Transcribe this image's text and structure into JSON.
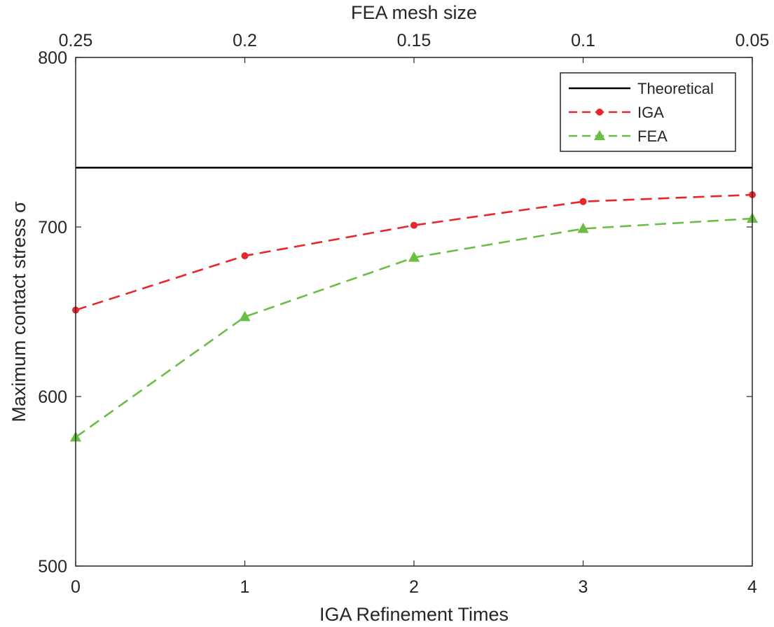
{
  "chart_data": {
    "type": "line",
    "title": "",
    "xlabel": "IGA Refinement Times",
    "ylabel": "Maximum contact stress  σ",
    "top_xlabel": "FEA mesh size",
    "x": [
      0,
      1,
      2,
      3,
      4
    ],
    "xlim": [
      0,
      4
    ],
    "ylim": [
      500,
      800
    ],
    "x_ticks": [
      "0",
      "1",
      "2",
      "3",
      "4"
    ],
    "y_ticks": [
      "500",
      "600",
      "700",
      "800"
    ],
    "top_ticks": [
      "0.25",
      "0.2",
      "0.15",
      "0.1",
      "0.05"
    ],
    "grid": false,
    "legend_position": "top-right",
    "series": [
      {
        "name": "Theoretical",
        "values": [
          735,
          735,
          735,
          735,
          735
        ],
        "color": "#000000",
        "style": "solid",
        "marker": "none"
      },
      {
        "name": "IGA",
        "values": [
          651,
          683,
          701,
          715,
          719
        ],
        "color": "#e8262c",
        "style": "dashed",
        "marker": "circle"
      },
      {
        "name": "FEA",
        "values": [
          576,
          647,
          682,
          699,
          705
        ],
        "color": "#6cbd45",
        "style": "dashed",
        "marker": "triangle"
      }
    ]
  }
}
